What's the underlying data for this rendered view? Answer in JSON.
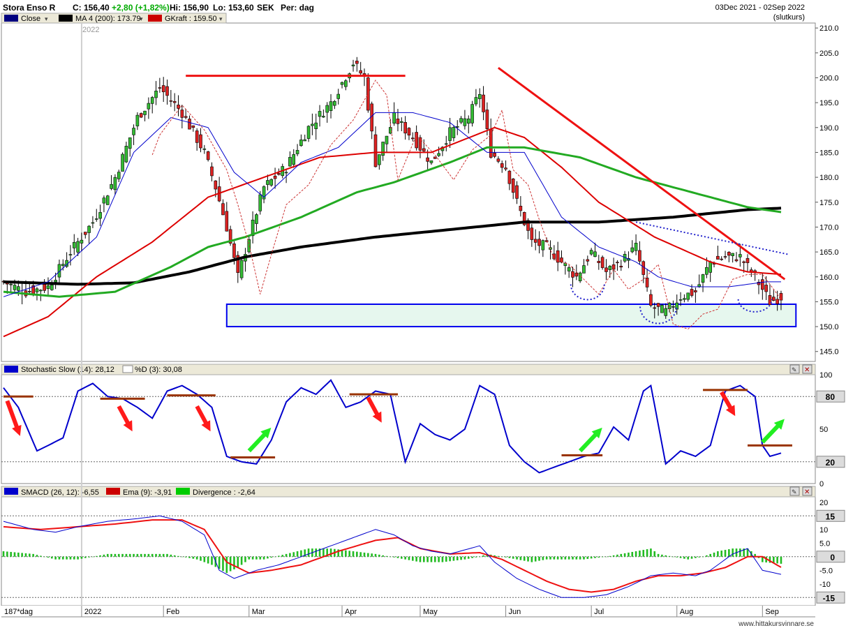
{
  "header": {
    "symbol": "Stora Enso R",
    "close": "C: 156,40",
    "change": "+2,80 (+1,82%)",
    "high": "Hi: 156,90",
    "low": "Lo: 153,60",
    "currency": "SEK",
    "period": "Per: dag",
    "range": "03Dec 2021 - 02Sep 2022",
    "note": "(slutkurs)"
  },
  "legend_price": [
    {
      "label": "Close",
      "color": "#000080"
    },
    {
      "label": "MA 4 (200): 173.79",
      "color": "#000000"
    },
    {
      "label": "GKraft : 159.50",
      "color": "#cc0000"
    }
  ],
  "legend_stoch": [
    {
      "label": "Stochastic Slow (14): 28,12",
      "color": "#0000cc"
    },
    {
      "label": "%D (3): 30,08",
      "color": "#ffffff"
    }
  ],
  "legend_macd": [
    {
      "label": "SMACD (26, 12): -6,55",
      "color": "#0000cc"
    },
    {
      "label": "Ema (9): -3,91",
      "color": "#cc0000"
    },
    {
      "label": "Divergence : -2,64",
      "color": "#00cc00"
    }
  ],
  "year_label": "2022",
  "footer": {
    "bars": "187*dag",
    "source": "www.hittakursvinnare.se"
  },
  "colors": {
    "up": "#33bb33",
    "down": "#dd2222",
    "blue": "#0000cc",
    "red": "#dd0000",
    "green": "#22aa22",
    "black": "#000000"
  },
  "chart_data": [
    {
      "type": "candlestick",
      "title": "Stora Enso R",
      "ylim": [
        143,
        211
      ],
      "y_ticks": [
        "145.0",
        "150.0",
        "155.0",
        "160.0",
        "165.0",
        "170.0",
        "175.0",
        "180.0",
        "185.0",
        "190.0",
        "195.0",
        "200.0",
        "205.0",
        "210.0"
      ],
      "x_ticks": [
        "2022",
        "Feb",
        "Mar",
        "Apr",
        "May",
        "Jun",
        "Jul",
        "Aug",
        "Sep"
      ],
      "close_anchors": [
        [
          0,
          159
        ],
        [
          6,
          157
        ],
        [
          12,
          158
        ],
        [
          18,
          165
        ],
        [
          24,
          171
        ],
        [
          30,
          180
        ],
        [
          36,
          192
        ],
        [
          42,
          198
        ],
        [
          48,
          193
        ],
        [
          54,
          185
        ],
        [
          57,
          178
        ],
        [
          60,
          170
        ],
        [
          63,
          160
        ],
        [
          66,
          168
        ],
        [
          70,
          178
        ],
        [
          76,
          182
        ],
        [
          82,
          190
        ],
        [
          88,
          195
        ],
        [
          94,
          203
        ],
        [
          97,
          200
        ],
        [
          100,
          183
        ],
        [
          105,
          192
        ],
        [
          110,
          188
        ],
        [
          115,
          183
        ],
        [
          120,
          189
        ],
        [
          125,
          192
        ],
        [
          128,
          197
        ],
        [
          131,
          185
        ],
        [
          135,
          182
        ],
        [
          138,
          175
        ],
        [
          142,
          167
        ],
        [
          146,
          166
        ],
        [
          150,
          163
        ],
        [
          154,
          160
        ],
        [
          158,
          165
        ],
        [
          162,
          161
        ],
        [
          166,
          163
        ],
        [
          170,
          166
        ],
        [
          174,
          154
        ],
        [
          178,
          153
        ],
        [
          182,
          156
        ],
        [
          186,
          157
        ],
        [
          190,
          163
        ],
        [
          194,
          164
        ],
        [
          198,
          164
        ],
        [
          202,
          160
        ],
        [
          206,
          155
        ],
        [
          209,
          156
        ]
      ],
      "series": [
        {
          "name": "MA 4 (200)",
          "anchors": [
            [
              0,
              159
            ],
            [
              20,
              158.5
            ],
            [
              35,
              158.8
            ],
            [
              50,
              161
            ],
            [
              65,
              164
            ],
            [
              80,
              166
            ],
            [
              100,
              168
            ],
            [
              120,
              169.5
            ],
            [
              140,
              171
            ],
            [
              160,
              171
            ],
            [
              180,
              172
            ],
            [
              200,
              173.5
            ],
            [
              209,
              173.8
            ]
          ]
        },
        {
          "name": "GKraft",
          "anchors": [
            [
              0,
              148
            ],
            [
              12,
              152
            ],
            [
              25,
              160
            ],
            [
              40,
              167
            ],
            [
              55,
              176
            ],
            [
              70,
              180
            ],
            [
              85,
              184
            ],
            [
              100,
              185
            ],
            [
              115,
              185
            ],
            [
              132,
              190
            ],
            [
              140,
              188
            ],
            [
              150,
              182
            ],
            [
              160,
              175
            ],
            [
              175,
              168
            ],
            [
              190,
              163
            ],
            [
              200,
              161
            ],
            [
              209,
              160.5
            ]
          ]
        },
        {
          "name": "MA green",
          "anchors": [
            [
              0,
              157
            ],
            [
              15,
              156
            ],
            [
              30,
              157
            ],
            [
              45,
              162
            ],
            [
              55,
              166
            ],
            [
              65,
              168
            ],
            [
              80,
              172
            ],
            [
              95,
              177
            ],
            [
              105,
              179
            ],
            [
              120,
              183
            ],
            [
              130,
              186
            ],
            [
              140,
              186
            ],
            [
              155,
              184
            ],
            [
              170,
              180
            ],
            [
              185,
              177
            ],
            [
              200,
              174
            ],
            [
              209,
              173
            ]
          ]
        },
        {
          "name": "MA blue",
          "anchors": [
            [
              0,
              156
            ],
            [
              12,
              159
            ],
            [
              25,
              168
            ],
            [
              35,
              185
            ],
            [
              45,
              192
            ],
            [
              55,
              190
            ],
            [
              62,
              181
            ],
            [
              70,
              176
            ],
            [
              80,
              183
            ],
            [
              90,
              186
            ],
            [
              100,
              193
            ],
            [
              110,
              193
            ],
            [
              120,
              191
            ],
            [
              130,
              185
            ],
            [
              140,
              185
            ],
            [
              150,
              172
            ],
            [
              160,
              166
            ],
            [
              170,
              163
            ],
            [
              176,
              160
            ],
            [
              185,
              158
            ],
            [
              195,
              158
            ],
            [
              205,
              159
            ],
            [
              209,
              159
            ]
          ]
        }
      ],
      "annotations": {
        "resistance_level": 200.4,
        "support_zone": [
          150,
          154.5
        ],
        "downtrend_line": [
          [
            133,
            202
          ],
          [
            210,
            159.5
          ]
        ],
        "dotted_trend": [
          [
            170,
            171
          ],
          [
            211,
            164.5
          ]
        ]
      }
    },
    {
      "type": "line",
      "title": "Stochastic Slow (14)",
      "ylim": [
        0,
        100
      ],
      "y_ticks": [
        "0",
        "20",
        "50",
        "80",
        "100"
      ],
      "level_labels": [
        "80",
        "20"
      ],
      "anchors": [
        [
          0,
          88
        ],
        [
          4,
          70
        ],
        [
          9,
          30
        ],
        [
          12,
          35
        ],
        [
          16,
          42
        ],
        [
          20,
          85
        ],
        [
          24,
          92
        ],
        [
          28,
          80
        ],
        [
          32,
          78
        ],
        [
          36,
          70
        ],
        [
          40,
          60
        ],
        [
          44,
          85
        ],
        [
          48,
          90
        ],
        [
          52,
          82
        ],
        [
          56,
          70
        ],
        [
          60,
          25
        ],
        [
          64,
          20
        ],
        [
          68,
          18
        ],
        [
          72,
          40
        ],
        [
          76,
          75
        ],
        [
          80,
          88
        ],
        [
          84,
          82
        ],
        [
          88,
          95
        ],
        [
          92,
          70
        ],
        [
          96,
          75
        ],
        [
          100,
          85
        ],
        [
          104,
          82
        ],
        [
          108,
          20
        ],
        [
          112,
          55
        ],
        [
          116,
          45
        ],
        [
          120,
          40
        ],
        [
          124,
          50
        ],
        [
          128,
          90
        ],
        [
          132,
          82
        ],
        [
          136,
          35
        ],
        [
          140,
          20
        ],
        [
          144,
          10
        ],
        [
          148,
          15
        ],
        [
          152,
          20
        ],
        [
          156,
          25
        ],
        [
          160,
          28
        ],
        [
          164,
          52
        ],
        [
          168,
          40
        ],
        [
          172,
          85
        ],
        [
          174,
          90
        ],
        [
          178,
          18
        ],
        [
          182,
          30
        ],
        [
          186,
          25
        ],
        [
          190,
          35
        ],
        [
          194,
          85
        ],
        [
          198,
          90
        ],
        [
          202,
          80
        ],
        [
          204,
          35
        ],
        [
          206,
          25
        ],
        [
          209,
          28
        ]
      ]
    },
    {
      "type": "line",
      "title": "SMACD (26, 12)",
      "ylim": [
        -18,
        22
      ],
      "y_ticks": [
        "-15",
        "-10",
        "-5.0",
        "0",
        "5.0",
        "10",
        "15",
        "20"
      ],
      "level_labels": [
        "15",
        "0",
        "-15"
      ],
      "smacd": [
        [
          0,
          13
        ],
        [
          8,
          10
        ],
        [
          14,
          9
        ],
        [
          20,
          11
        ],
        [
          28,
          13
        ],
        [
          36,
          14
        ],
        [
          42,
          15
        ],
        [
          48,
          13
        ],
        [
          54,
          8
        ],
        [
          58,
          -5
        ],
        [
          62,
          -8
        ],
        [
          68,
          -5
        ],
        [
          74,
          -3
        ],
        [
          80,
          0
        ],
        [
          90,
          5
        ],
        [
          100,
          10
        ],
        [
          105,
          8
        ],
        [
          110,
          4
        ],
        [
          115,
          2
        ],
        [
          120,
          1
        ],
        [
          128,
          4
        ],
        [
          132,
          -2
        ],
        [
          138,
          -8
        ],
        [
          144,
          -12
        ],
        [
          150,
          -15
        ],
        [
          156,
          -15
        ],
        [
          162,
          -14
        ],
        [
          168,
          -11
        ],
        [
          174,
          -7
        ],
        [
          180,
          -6
        ],
        [
          186,
          -7
        ],
        [
          190,
          -5
        ],
        [
          196,
          1
        ],
        [
          200,
          3
        ],
        [
          204,
          -5
        ],
        [
          209,
          -6.5
        ]
      ],
      "ema": [
        [
          0,
          11
        ],
        [
          10,
          10
        ],
        [
          20,
          11
        ],
        [
          30,
          12
        ],
        [
          40,
          13.5
        ],
        [
          48,
          13.5
        ],
        [
          54,
          10
        ],
        [
          60,
          -2
        ],
        [
          66,
          -6
        ],
        [
          72,
          -5
        ],
        [
          80,
          -3
        ],
        [
          90,
          2
        ],
        [
          100,
          6
        ],
        [
          106,
          7
        ],
        [
          112,
          3
        ],
        [
          120,
          1
        ],
        [
          128,
          1.5
        ],
        [
          134,
          -1
        ],
        [
          140,
          -5
        ],
        [
          146,
          -9
        ],
        [
          152,
          -12
        ],
        [
          158,
          -13
        ],
        [
          164,
          -12
        ],
        [
          170,
          -9
        ],
        [
          176,
          -7
        ],
        [
          182,
          -7
        ],
        [
          188,
          -6
        ],
        [
          194,
          -4
        ],
        [
          200,
          0
        ],
        [
          204,
          0
        ],
        [
          209,
          -3.9
        ]
      ],
      "divergence_anchors": [
        [
          0,
          2
        ],
        [
          8,
          1
        ],
        [
          14,
          -1
        ],
        [
          20,
          -1
        ],
        [
          28,
          1
        ],
        [
          36,
          1
        ],
        [
          44,
          1
        ],
        [
          48,
          0
        ],
        [
          52,
          -1
        ],
        [
          56,
          -3
        ],
        [
          60,
          -6
        ],
        [
          63,
          -4
        ],
        [
          66,
          -1
        ],
        [
          70,
          -1
        ],
        [
          76,
          1
        ],
        [
          82,
          3
        ],
        [
          88,
          3
        ],
        [
          94,
          2
        ],
        [
          100,
          1
        ],
        [
          104,
          0
        ],
        [
          108,
          -1
        ],
        [
          112,
          -2
        ],
        [
          118,
          -2
        ],
        [
          124,
          -1
        ],
        [
          128,
          0
        ],
        [
          130,
          1
        ],
        [
          134,
          0
        ],
        [
          138,
          -1
        ],
        [
          142,
          -2
        ],
        [
          146,
          -1
        ],
        [
          150,
          -1
        ],
        [
          156,
          -1
        ],
        [
          162,
          0
        ],
        [
          166,
          1
        ],
        [
          170,
          2
        ],
        [
          174,
          3
        ],
        [
          176,
          1
        ],
        [
          180,
          0
        ],
        [
          184,
          -1
        ],
        [
          188,
          0
        ],
        [
          192,
          2
        ],
        [
          196,
          3
        ],
        [
          200,
          3
        ],
        [
          202,
          1
        ],
        [
          204,
          -2
        ],
        [
          209,
          -2.6
        ]
      ]
    }
  ]
}
